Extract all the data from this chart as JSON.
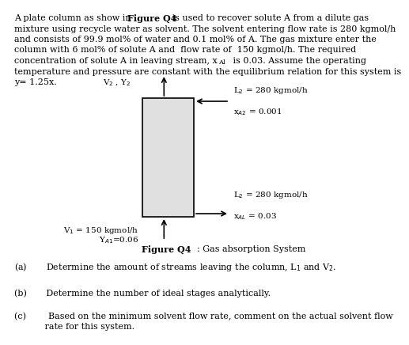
{
  "para_line1": "A plate column as show in ",
  "para_bold": "Figure Q4",
  "para_line1b": " is used to recover solute A from a dilute gas",
  "para_line2": "mixture using recycle water as solvent. The solvent entering flow rate is 280 kgmol/h",
  "para_line3": "and consists of 99.9 mol% of water and 0.1 mol% of A. The gas mixture enter the",
  "para_line4": "column with 6 mol% of solute A and  flow rate of  150 kgmol/h. The required",
  "para_line5a": "concentration of solute A in leaving stream, x",
  "para_line5_sub": "Al",
  "para_line5b": " is 0.03. Assume the operating",
  "para_line6": "temperature and pressure are constant with the equilibrium relation for this system is",
  "para_line7": "y= 1.25x.",
  "label_V2Y2": "V$_2$ , Y$_2$",
  "label_L2_top": "L$_2$ = 280 kgmol/h",
  "label_xA2": "x$_{A2}$ = 0.001",
  "label_L2_bot": "L$_2$ = 280 kgmol/h",
  "label_xAL": "x$_{AL}$ = 0.03",
  "label_V1": "V$_1$ = 150 kgmol/h",
  "label_yA1": "Y$_{A1}$=0.06",
  "caption_bold": "Figure Q4",
  "caption_normal": ": Gas absorption System",
  "qa": "(a)       Determine the amount of streams leaving the column, L$_1$ and V$_2$.",
  "qb": "(b)       Determine the number of ideal stages analytically.",
  "qc1": "(c)        Based on the minimum solvent flow rate, comment on the actual solvent flow",
  "qc2": "           rate for this system.",
  "bg_color": "#ffffff",
  "text_color": "#000000",
  "box_facecolor": "#e0e0e0",
  "box_edgecolor": "#000000",
  "fs_body": 8.0,
  "fs_label": 7.5
}
